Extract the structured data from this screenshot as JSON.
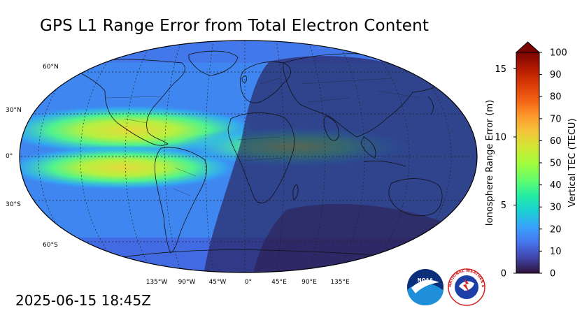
{
  "title": "GPS L1 Range Error from Total Electron Content",
  "timestamp": "2025-06-15 18:45Z",
  "map": {
    "projection": "robinson",
    "lat_labels": [
      "60°N",
      "30°N",
      "0°",
      "30°S",
      "60°S"
    ],
    "lon_labels": [
      "135°W",
      "90°W",
      "45°W",
      "0°",
      "45°E",
      "90°E",
      "135°E"
    ]
  },
  "colorbar": {
    "left_label": "Ionosphere Range Error (m)",
    "right_label": "Vertical TEC (TECU)",
    "left_ticks": [
      "0",
      "5",
      "10",
      "15"
    ],
    "right_ticks": [
      "0",
      "10",
      "20",
      "30",
      "40",
      "50",
      "60",
      "70",
      "80",
      "90",
      "100"
    ],
    "range_tecu": [
      0,
      100
    ],
    "range_m": [
      0,
      16.2
    ],
    "extend": "max",
    "colors": [
      "#30123b",
      "#4145ab",
      "#4675ed",
      "#39a2fc",
      "#1bcfd4",
      "#24eca6",
      "#61fc6c",
      "#a4fc3b",
      "#d1e834",
      "#f3c63a",
      "#fe9b2d",
      "#f36315",
      "#d93806",
      "#b11901",
      "#7a0403"
    ]
  },
  "logos": {
    "noaa_text": "NOAA",
    "nws_text": "NATIONAL WEATHER SERVICE"
  }
}
